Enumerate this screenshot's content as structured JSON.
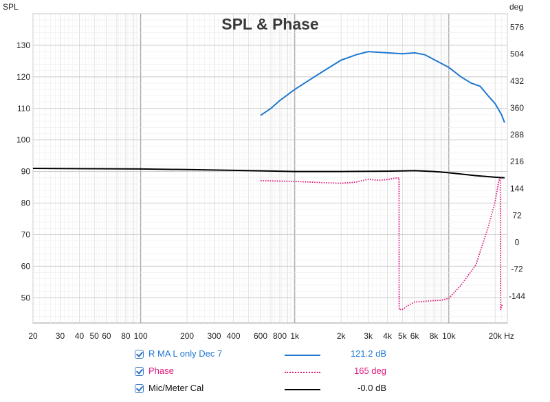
{
  "chart_data": {
    "type": "line",
    "title": "SPL & Phase",
    "ylabel_left": "SPL",
    "ylabel_right": "deg",
    "x_unit": "Hz",
    "x_scale": "log",
    "xlim": [
      20,
      24000
    ],
    "ylim_left": [
      42,
      140
    ],
    "ylim_right": [
      -216,
      612
    ],
    "grid": true,
    "x_ticks": [
      {
        "value": 20,
        "label": "20"
      },
      {
        "value": 30,
        "label": "30"
      },
      {
        "value": 40,
        "label": "40"
      },
      {
        "value": 50,
        "label": "50"
      },
      {
        "value": 60,
        "label": "60"
      },
      {
        "value": 80,
        "label": "80"
      },
      {
        "value": 100,
        "label": "100"
      },
      {
        "value": 200,
        "label": "200"
      },
      {
        "value": 300,
        "label": "300"
      },
      {
        "value": 400,
        "label": "400"
      },
      {
        "value": 600,
        "label": "600"
      },
      {
        "value": 800,
        "label": "800"
      },
      {
        "value": 1000,
        "label": "1k"
      },
      {
        "value": 2000,
        "label": "2k"
      },
      {
        "value": 3000,
        "label": "3k"
      },
      {
        "value": 4000,
        "label": "4k"
      },
      {
        "value": 5000,
        "label": "5k"
      },
      {
        "value": 6000,
        "label": "6k"
      },
      {
        "value": 8000,
        "label": "8k"
      },
      {
        "value": 10000,
        "label": "10k"
      },
      {
        "value": 20000,
        "label": "20k"
      }
    ],
    "x_unit_label": "Hz",
    "y_left_ticks": [
      50,
      60,
      70,
      80,
      90,
      100,
      110,
      120,
      130
    ],
    "y_right_ticks": [
      -144,
      -72,
      0,
      72,
      144,
      216,
      288,
      360,
      432,
      504,
      576
    ],
    "series": [
      {
        "name": "R MA L only Dec 7",
        "axis": "left",
        "color": "#1f77d0",
        "style": "solid",
        "legend_value": "121.2 dB",
        "points": [
          [
            600,
            107.8
          ],
          [
            700,
            110
          ],
          [
            800,
            112.5
          ],
          [
            1000,
            116
          ],
          [
            1200,
            118.5
          ],
          [
            1500,
            121.5
          ],
          [
            2000,
            125.3
          ],
          [
            2500,
            127
          ],
          [
            3000,
            128
          ],
          [
            4000,
            127.6
          ],
          [
            5000,
            127.3
          ],
          [
            6000,
            127.6
          ],
          [
            7000,
            127
          ],
          [
            8000,
            125.5
          ],
          [
            10000,
            123
          ],
          [
            12000,
            120
          ],
          [
            14000,
            118
          ],
          [
            16000,
            117
          ],
          [
            18000,
            114
          ],
          [
            20000,
            111.5
          ],
          [
            22000,
            108
          ],
          [
            23000,
            105.5
          ]
        ]
      },
      {
        "name": "Phase",
        "axis": "right",
        "color": "#e0197d",
        "style": "dotted",
        "legend_value": "165 deg",
        "points": [
          [
            600,
            165
          ],
          [
            1000,
            163
          ],
          [
            1500,
            160
          ],
          [
            2000,
            158
          ],
          [
            2500,
            161
          ],
          [
            3000,
            169
          ],
          [
            3500,
            166
          ],
          [
            4000,
            168
          ],
          [
            4500,
            172
          ],
          [
            4750,
            172
          ],
          [
            4760,
            -180
          ],
          [
            5000,
            -180
          ],
          [
            5500,
            -168
          ],
          [
            6000,
            -160
          ],
          [
            7000,
            -158
          ],
          [
            8000,
            -156
          ],
          [
            9000,
            -155
          ],
          [
            10000,
            -150
          ],
          [
            12000,
            -115
          ],
          [
            15000,
            -60
          ],
          [
            18000,
            40
          ],
          [
            20000,
            110
          ],
          [
            21000,
            160
          ],
          [
            21600,
            175
          ],
          [
            21700,
            -180
          ],
          [
            22000,
            -170
          ],
          [
            22500,
            -165
          ]
        ]
      },
      {
        "name": "Mic/Meter Cal",
        "axis": "left",
        "color": "#000000",
        "style": "solid",
        "legend_value": "-0.0 dB",
        "points": [
          [
            20,
            91
          ],
          [
            50,
            90.9
          ],
          [
            100,
            90.8
          ],
          [
            200,
            90.6
          ],
          [
            500,
            90.3
          ],
          [
            1000,
            90
          ],
          [
            2000,
            90
          ],
          [
            4000,
            90.1
          ],
          [
            6000,
            90.3
          ],
          [
            8000,
            90
          ],
          [
            10000,
            89.6
          ],
          [
            15000,
            88.7
          ],
          [
            20000,
            88.2
          ],
          [
            23000,
            88
          ]
        ]
      }
    ]
  }
}
